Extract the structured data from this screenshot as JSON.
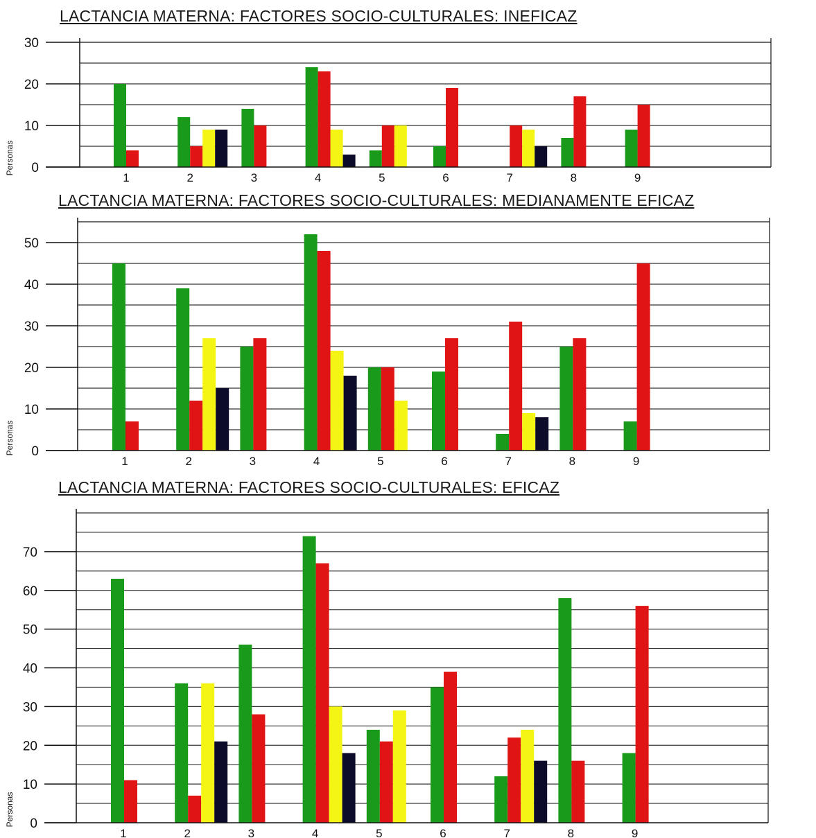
{
  "colors": {
    "series_1": "#1a9a1a",
    "series_2": "#e01414",
    "series_3": "#f5f514",
    "series_4": "#0c0c2a",
    "axis": "#111111",
    "grid": "#333333"
  },
  "chart_data": [
    {
      "type": "bar",
      "title": "LACTANCIA MATERNA: FACTORES SOCIO-CULTURALES: INEFICAZ",
      "ylabel": "Personas",
      "xlabel": "",
      "categories": [
        "1",
        "2",
        "3",
        "4",
        "5",
        "6",
        "7",
        "8",
        "9"
      ],
      "ylim": [
        0,
        30
      ],
      "yticks": [
        "0",
        "10",
        "20",
        "30"
      ],
      "grid": true,
      "series": [
        {
          "color": "#1a9a1a",
          "values": [
            20,
            12,
            14,
            24,
            4,
            5,
            0,
            7,
            9
          ]
        },
        {
          "color": "#e01414",
          "values": [
            4,
            5,
            10,
            23,
            10,
            19,
            10,
            17,
            15
          ]
        },
        {
          "color": "#f5f514",
          "values": [
            0,
            9,
            0,
            9,
            10,
            0,
            9,
            0,
            0
          ]
        },
        {
          "color": "#0c0c2a",
          "values": [
            0,
            9,
            0,
            3,
            0,
            0,
            5,
            0,
            0
          ]
        }
      ]
    },
    {
      "type": "bar",
      "title": "LACTANCIA MATERNA: FACTORES SOCIO-CULTURALES: MEDIANAMENTE EFICAZ",
      "ylabel": "Personas",
      "xlabel": "",
      "categories": [
        "1",
        "2",
        "3",
        "4",
        "5",
        "6",
        "7",
        "8",
        "9"
      ],
      "ylim": [
        0,
        50
      ],
      "yticks": [
        "0",
        "10",
        "20",
        "30",
        "40",
        "50"
      ],
      "grid": true,
      "series": [
        {
          "color": "#1a9a1a",
          "values": [
            45,
            39,
            25,
            52,
            20,
            19,
            4,
            25,
            7
          ]
        },
        {
          "color": "#e01414",
          "values": [
            7,
            12,
            27,
            48,
            20,
            27,
            31,
            27,
            45
          ]
        },
        {
          "color": "#f5f514",
          "values": [
            0,
            27,
            0,
            24,
            12,
            0,
            9,
            0,
            0
          ]
        },
        {
          "color": "#0c0c2a",
          "values": [
            0,
            15,
            0,
            18,
            0,
            0,
            8,
            0,
            0
          ]
        }
      ]
    },
    {
      "type": "bar",
      "title": "LACTANCIA MATERNA: FACTORES SOCIO-CULTURALES: EFICAZ",
      "ylabel": "Personas",
      "xlabel": "",
      "categories": [
        "1",
        "2",
        "3",
        "4",
        "5",
        "6",
        "7",
        "8",
        "9"
      ],
      "ylim": [
        0,
        70
      ],
      "yticks": [
        "0",
        "10",
        "20",
        "30",
        "40",
        "50",
        "60",
        "70"
      ],
      "grid": true,
      "series": [
        {
          "color": "#1a9a1a",
          "values": [
            63,
            36,
            46,
            74,
            24,
            35,
            12,
            58,
            18
          ]
        },
        {
          "color": "#e01414",
          "values": [
            11,
            7,
            28,
            67,
            21,
            39,
            22,
            16,
            56
          ]
        },
        {
          "color": "#f5f514",
          "values": [
            0,
            36,
            0,
            30,
            29,
            0,
            24,
            0,
            0
          ]
        },
        {
          "color": "#0c0c2a",
          "values": [
            0,
            21,
            0,
            18,
            0,
            0,
            16,
            0,
            0
          ]
        }
      ]
    }
  ]
}
